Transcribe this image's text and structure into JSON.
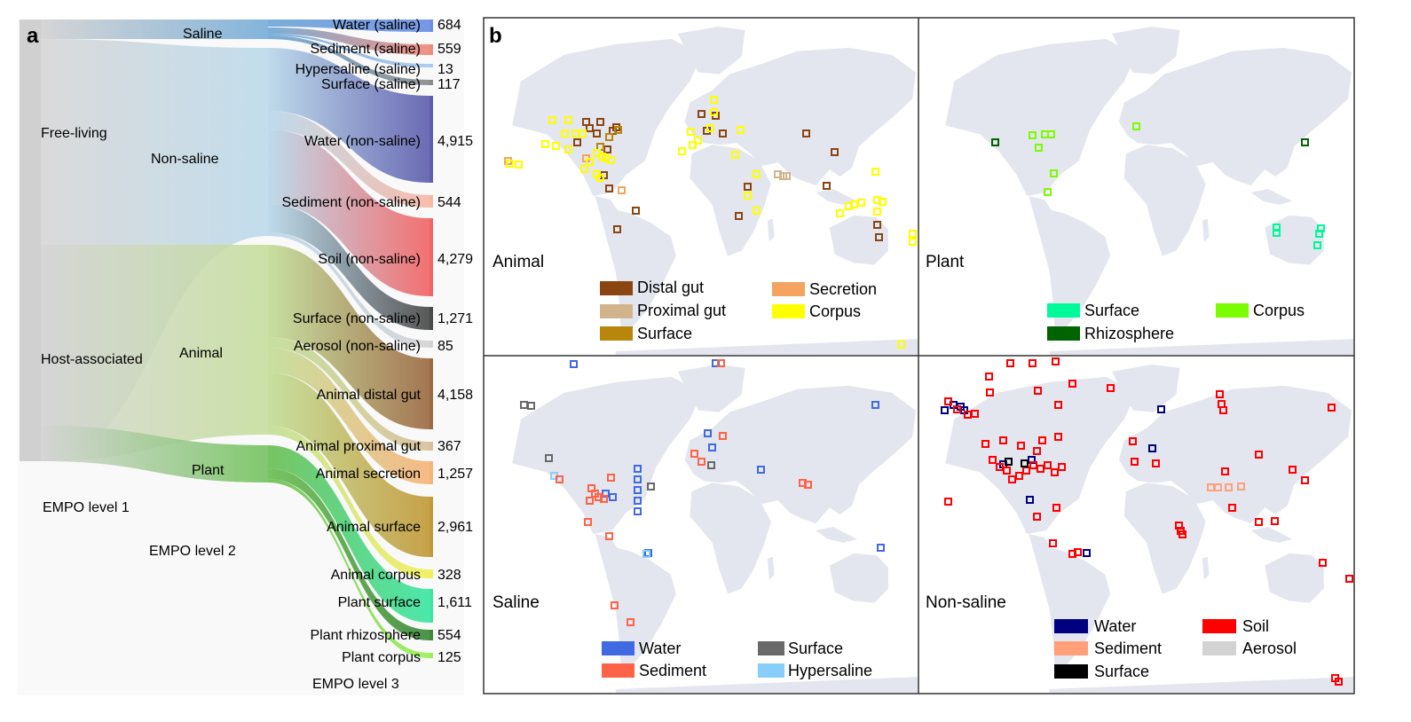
{
  "panel_a": {
    "label": "a",
    "level1_title": "EMPO level 1",
    "level2_title": "EMPO level 2",
    "level3_title": "EMPO level 3",
    "level1": [
      {
        "key": "free",
        "label": "Free-living",
        "color": "#c8c8c8"
      },
      {
        "key": "host",
        "label": "Host-associated",
        "color": "#c8c8c8"
      }
    ],
    "level2": [
      {
        "key": "saline",
        "label": "Saline",
        "color": "#6fa8d6"
      },
      {
        "key": "nonsaline",
        "label": "Non-saline",
        "color": "#b9d8ea"
      },
      {
        "key": "animal",
        "label": "Animal",
        "color": "#c3dd98"
      },
      {
        "key": "plant",
        "label": "Plant",
        "color": "#6cbf55"
      }
    ],
    "level3": [
      {
        "key": "w_sal",
        "label": "Water (saline)",
        "count": "684",
        "color": "#6d8fe6",
        "parent": "saline"
      },
      {
        "key": "s_sal",
        "label": "Sediment (saline)",
        "count": "559",
        "color": "#f08a7a",
        "parent": "saline"
      },
      {
        "key": "h_sal",
        "label": "Hypersaline (saline)",
        "count": "13",
        "color": "#a9c9f0",
        "parent": "saline"
      },
      {
        "key": "su_sal",
        "label": "Surface (saline)",
        "count": "117",
        "color": "#8a8a8a",
        "parent": "saline"
      },
      {
        "key": "w_non",
        "label": "Water (non-saline)",
        "count": "4,915",
        "color": "#5f5fae",
        "parent": "nonsaline"
      },
      {
        "key": "s_non",
        "label": "Sediment (non-saline)",
        "count": "544",
        "color": "#f7b8a6",
        "parent": "nonsaline"
      },
      {
        "key": "soil",
        "label": "Soil (non-saline)",
        "count": "4,279",
        "color": "#f26566",
        "parent": "nonsaline"
      },
      {
        "key": "su_non",
        "label": "Surface (non-saline)",
        "count": "1,271",
        "color": "#4a4a4a",
        "parent": "nonsaline"
      },
      {
        "key": "aer",
        "label": "Aerosol (non-saline)",
        "count": "85",
        "color": "#d3d3d3",
        "parent": "nonsaline"
      },
      {
        "key": "a_dist",
        "label": "Animal distal gut",
        "count": "4,158",
        "color": "#9c6b43",
        "parent": "animal"
      },
      {
        "key": "a_prox",
        "label": "Animal proximal gut",
        "count": "367",
        "color": "#d9c19a",
        "parent": "animal"
      },
      {
        "key": "a_sec",
        "label": "Animal secretion",
        "count": "1,257",
        "color": "#f6b57c",
        "parent": "animal"
      },
      {
        "key": "a_surf",
        "label": "Animal surface",
        "count": "2,961",
        "color": "#c29a3a",
        "parent": "animal"
      },
      {
        "key": "a_corp",
        "label": "Animal corpus",
        "count": "328",
        "color": "#f0f05a",
        "parent": "animal"
      },
      {
        "key": "p_surf",
        "label": "Plant surface",
        "count": "1,611",
        "color": "#3ee6a4",
        "parent": "plant"
      },
      {
        "key": "p_rhiz",
        "label": "Plant rhizosphere",
        "count": "554",
        "color": "#3f8a3a",
        "parent": "plant"
      },
      {
        "key": "p_corp",
        "label": "Plant corpus",
        "count": "125",
        "color": "#9ef05a",
        "parent": "plant"
      }
    ]
  },
  "panel_b": {
    "label": "b",
    "maps": [
      {
        "key": "animal",
        "title": "Animal",
        "legend": [
          {
            "label": "Distal gut",
            "color": "#8b4513"
          },
          {
            "label": "Proximal gut",
            "color": "#d2b48c"
          },
          {
            "label": "Surface",
            "color": "#b8860b"
          },
          {
            "label": "Secretion",
            "color": "#f4a460"
          },
          {
            "label": "Corpus",
            "color": "#ffff00"
          }
        ]
      },
      {
        "key": "plant",
        "title": "Plant",
        "legend": [
          {
            "label": "Surface",
            "color": "#00fa9a"
          },
          {
            "label": "Rhizosphere",
            "color": "#006400"
          },
          {
            "label": "Corpus",
            "color": "#7cfc00"
          }
        ]
      },
      {
        "key": "saline",
        "title": "Saline",
        "legend": [
          {
            "label": "Water",
            "color": "#4169e1"
          },
          {
            "label": "Sediment",
            "color": "#ff6347"
          },
          {
            "label": "Surface",
            "color": "#696969"
          },
          {
            "label": "Hypersaline",
            "color": "#87cefa"
          }
        ]
      },
      {
        "key": "nonsaline",
        "title": "Non-saline",
        "legend": [
          {
            "label": "Water",
            "color": "#000080"
          },
          {
            "label": "Sediment",
            "color": "#ffa07a"
          },
          {
            "label": "Surface",
            "color": "#000000"
          },
          {
            "label": "Soil",
            "color": "#ff0000"
          },
          {
            "label": "Aerosol",
            "color": "#d3d3d3"
          }
        ]
      }
    ]
  }
}
